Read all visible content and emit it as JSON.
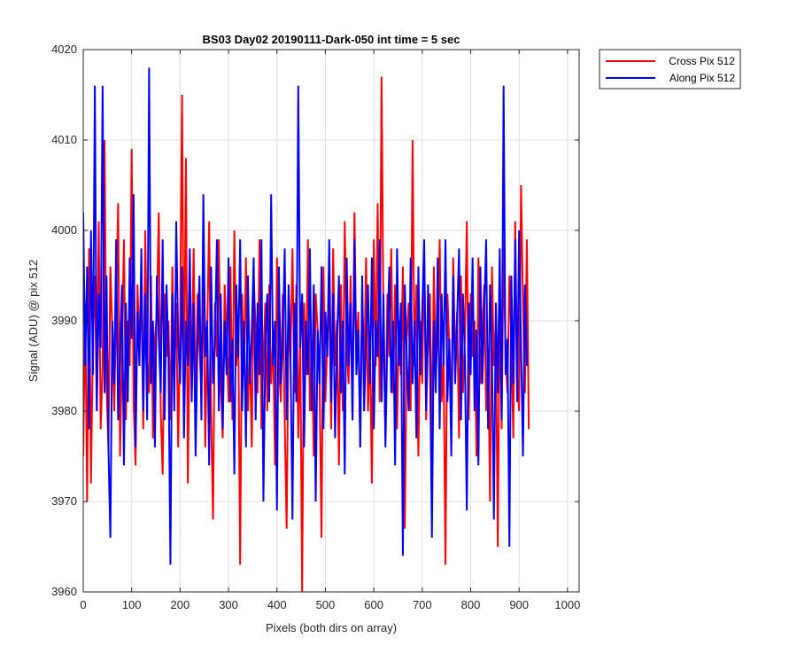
{
  "chart_data": {
    "type": "line",
    "title": "BS03 Day02 20190111-Dark-050 int time = 5 sec",
    "xlabel": "Pixels (both dirs on array)",
    "ylabel": "Signal (ADU) @ pix 512",
    "xlim": [
      0,
      1024
    ],
    "ylim": [
      3960,
      4020
    ],
    "xticks": [
      0,
      100,
      200,
      300,
      400,
      500,
      600,
      700,
      800,
      900,
      1000
    ],
    "yticks": [
      3960,
      3970,
      3980,
      3990,
      4000,
      4010,
      4020
    ],
    "grid": true,
    "legend_position": "outside-top-right",
    "x_step": 4,
    "series": [
      {
        "name": "Cross Pix 512",
        "color": "#ff0000",
        "values": [
          3975,
          3992,
          3970,
          3998,
          3972,
          3988,
          3995,
          3980,
          4001,
          3978,
          3985,
          4010,
          3983,
          3976,
          3996,
          3989,
          3980,
          3992,
          4003,
          3975,
          3987,
          3999,
          3979,
          3990,
          3985,
          4009,
          3981,
          3974,
          3994,
          3987,
          3993,
          3978,
          4000,
          3986,
          3982,
          3995,
          3977,
          3988,
          3991,
          4002,
          3980,
          3973,
          3993,
          3986,
          3990,
          3979,
          3996,
          3984,
          3992,
          3976,
          3989,
          4015,
          3981,
          4008,
          3972,
          3990,
          3985,
          3998,
          3979,
          3993,
          3987,
          3982,
          3995,
          3976,
          3989,
          4001,
          3980,
          3968,
          3992,
          3986,
          3999,
          3983,
          3977,
          3994,
          3988,
          3981,
          3996,
          3979,
          4000,
          3985,
          3990,
          3963,
          3993,
          3984,
          3997,
          3980,
          3987,
          3976,
          3995,
          3989,
          3982,
          3999,
          3978,
          3986,
          3992,
          3980,
          3994,
          3983,
          3988,
          3974,
          3997,
          3985,
          3981,
          3993,
          3979,
          3967,
          3990,
          3986,
          3998,
          3982,
          3994,
          3977,
          3989,
          3960,
          3992,
          3984,
          3999,
          3980,
          3987,
          3975,
          3993,
          3989,
          3983,
          3966,
          3996,
          3981,
          3988,
          3992,
          3978,
          3998,
          3985,
          3990,
          3974,
          3994,
          3980,
          4001,
          3987,
          3983,
          3995,
          3979,
          4002,
          3986,
          3991,
          3976,
          3993,
          3984,
          3997,
          3980,
          3988,
          3972,
          3999,
          3985,
          4003,
          3981,
          4017,
          3989,
          3977,
          3993,
          3986,
          3998,
          3982,
          3994,
          3978,
          3990,
          3984,
          3996,
          3967,
          3988,
          3992,
          3980,
          4010,
          3985,
          3994,
          3975,
          3990,
          3983,
          3998,
          3979,
          3988,
          3993,
          3976,
          3996,
          3984,
          3989,
          3999,
          3981,
          3986,
          3963,
          3993,
          3987,
          3980,
          3997,
          3985,
          3991,
          3977,
          3995,
          3982,
          3988,
          4001,
          3979,
          3993,
          3986,
          3990,
          3975,
          3997,
          3983,
          3989,
          3994,
          3980,
          3987,
          3970,
          3996,
          3985,
          3990,
          3965,
          3993,
          3978,
          3999,
          3986,
          3982,
          3995,
          3988,
          3977,
          4001,
          3984,
          3980,
          4005,
          3992,
          3982,
          3999,
          3978
        ]
      },
      {
        "name": "Along Pix 512",
        "color": "#0000ff",
        "values": [
          4002,
          3985,
          3996,
          3978,
          4000,
          3984,
          4016,
          3980,
          3993,
          3987,
          4016,
          3982,
          3995,
          3976,
          3966,
          3990,
          3983,
          3999,
          3979,
          3986,
          3994,
          3974,
          3992,
          3981,
          3997,
          3988,
          4004,
          3976,
          3991,
          3985,
          3998,
          3980,
          3993,
          3979,
          4018,
          3983,
          3990,
          3976,
          3995,
          3988,
          3982,
          3999,
          3979,
          3994,
          3986,
          3963,
          3993,
          3980,
          4001,
          3988,
          3983,
          3996,
          3977,
          3990,
          3985,
          3998,
          3981,
          3992,
          3975,
          3988,
          3995,
          3979,
          4004,
          3986,
          3990,
          3974,
          3996,
          3983,
          3988,
          3999,
          3980,
          3993,
          3978,
          3990,
          3984,
          3997,
          3981,
          3988,
          3973,
          3994,
          3986,
          3999,
          3980,
          3990,
          3976,
          3995,
          3983,
          3989,
          3997,
          3979,
          3992,
          3984,
          3999,
          3970,
          3987,
          3993,
          3981,
          4004,
          3985,
          3990,
          3969,
          3996,
          3983,
          3988,
          3998,
          3979,
          3994,
          3986,
          3968,
          3992,
          3981,
          4016,
          3987,
          3993,
          3976,
          3990,
          3984,
          3998,
          3980,
          3994,
          3970,
          3989,
          3983,
          3996,
          3978,
          3991,
          3986,
          3999,
          3981,
          3993,
          3977,
          3988,
          3995,
          3982,
          3990,
          3973,
          3997,
          3985,
          3992,
          3979,
          3999,
          3984,
          3989,
          3976,
          3995,
          3980,
          3988,
          3994,
          3983,
          3997,
          3978,
          3990,
          3986,
          3999,
          3981,
          3993,
          3976,
          3988,
          3996,
          3982,
          3990,
          3974,
          3998,
          3985,
          3992,
          3964,
          3994,
          3986,
          3980,
          3997,
          3983,
          3990,
          3977,
          3996,
          3984,
          3991,
          3999,
          3980,
          3994,
          3986,
          3966,
          3990,
          3982,
          3997,
          3978,
          3993,
          3985,
          3999,
          3981,
          3988,
          3975,
          3995,
          3983,
          3990,
          3998,
          3979,
          3993,
          3986,
          3969,
          3992,
          3984,
          3997,
          3980,
          3989,
          3974,
          3996,
          3983,
          3991,
          3999,
          3978,
          3994,
          3986,
          3968,
          3992,
          3982,
          3998,
          3979,
          4016,
          3984,
          3988,
          3965,
          3995,
          3983,
          3999,
          3981,
          4000,
          3987,
          3975,
          3994,
          3985
        ]
      }
    ]
  }
}
